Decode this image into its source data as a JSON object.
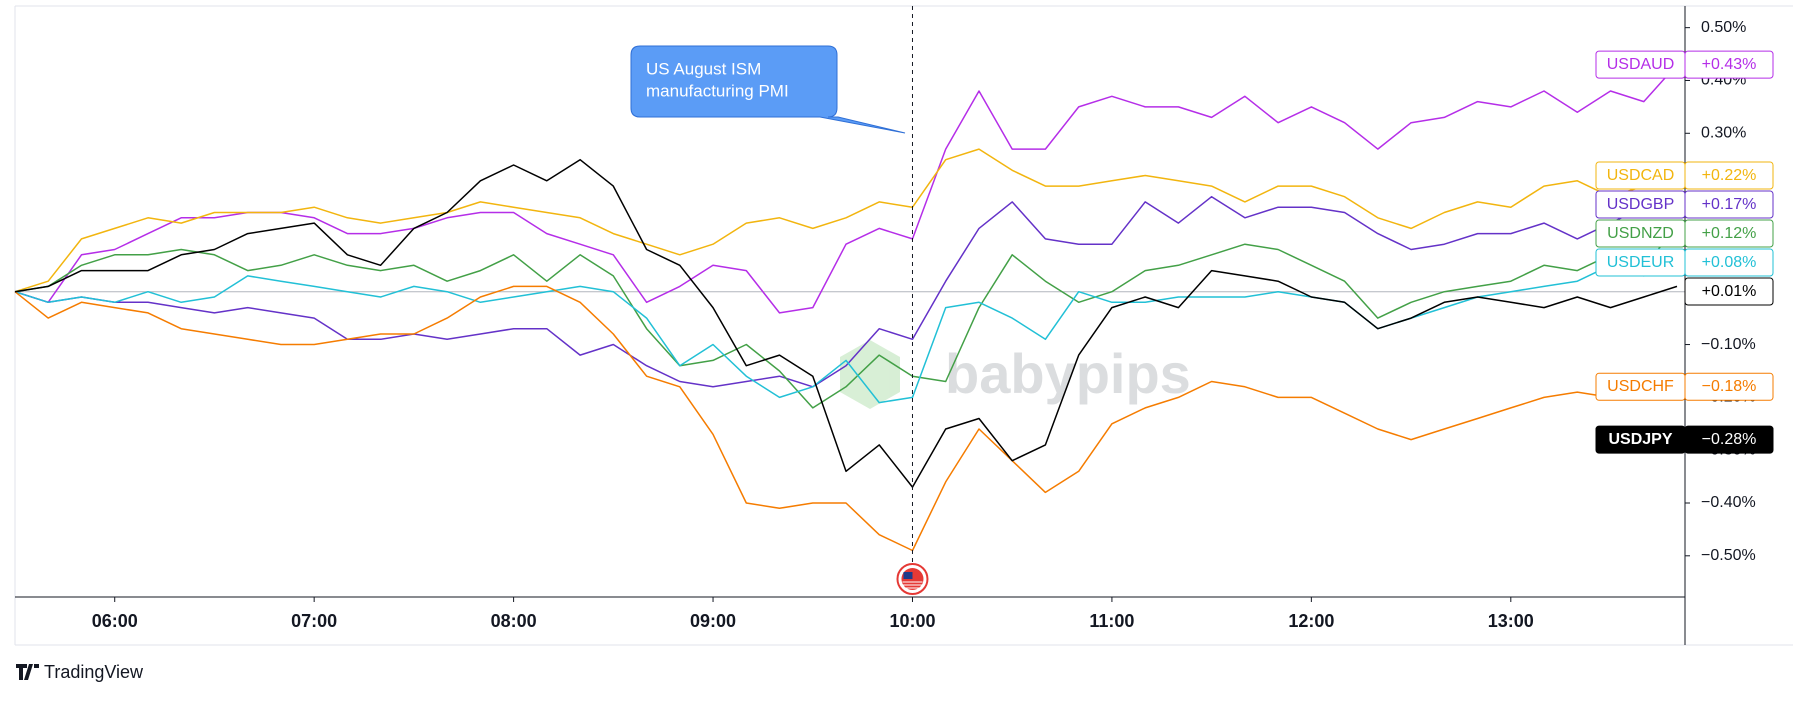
{
  "chart_data": {
    "type": "line",
    "annotation": [
      "US August ISM",
      "manufacturing PMI"
    ],
    "event_x": "10:00",
    "watermark": "babypips",
    "source": "TradingView",
    "x": [
      "05:30",
      "05:40",
      "05:50",
      "06:00",
      "06:10",
      "06:20",
      "06:30",
      "06:40",
      "06:50",
      "07:00",
      "07:10",
      "07:20",
      "07:30",
      "07:40",
      "07:50",
      "08:00",
      "08:10",
      "08:20",
      "08:30",
      "08:40",
      "08:50",
      "09:00",
      "09:10",
      "09:20",
      "09:30",
      "09:40",
      "09:50",
      "10:00",
      "10:10",
      "10:20",
      "10:30",
      "10:40",
      "10:50",
      "11:00",
      "11:10",
      "11:20",
      "11:30",
      "11:40",
      "11:50",
      "12:00",
      "12:10",
      "12:20",
      "12:30",
      "12:40",
      "12:50",
      "13:00",
      "13:10",
      "13:20",
      "13:30",
      "13:40",
      "13:50"
    ],
    "xticks": [
      "06:00",
      "07:00",
      "08:00",
      "09:00",
      "10:00",
      "11:00",
      "12:00",
      "13:00"
    ],
    "ylim": [
      -0.578,
      0.541
    ],
    "yticks": [
      {
        "value": 0.5,
        "label": "0.50%"
      },
      {
        "value": 0.4,
        "label": "0.40%"
      },
      {
        "value": 0.3,
        "label": "0.30%"
      },
      {
        "value": -0.1,
        "label": "−0.10%"
      },
      {
        "value": -0.2,
        "label": "−0.20%"
      },
      {
        "value": -0.3,
        "label": "−0.30%"
      },
      {
        "value": -0.4,
        "label": "−0.40%"
      },
      {
        "value": -0.5,
        "label": "−0.50%"
      }
    ],
    "grid": false,
    "series": [
      {
        "name": "USDAUD",
        "color": "#b52ee8",
        "values": [
          0,
          -0.02,
          0.07,
          0.08,
          0.11,
          0.14,
          0.14,
          0.15,
          0.15,
          0.14,
          0.11,
          0.11,
          0.12,
          0.14,
          0.15,
          0.15,
          0.11,
          0.09,
          0.07,
          -0.02,
          0.01,
          0.05,
          0.04,
          -0.04,
          -0.03,
          0.09,
          0.12,
          0.1,
          0.27,
          0.38,
          0.27,
          0.27,
          0.35,
          0.37,
          0.35,
          0.35,
          0.33,
          0.37,
          0.32,
          0.35,
          0.32,
          0.27,
          0.32,
          0.33,
          0.36,
          0.35,
          0.38,
          0.34,
          0.38,
          0.36,
          0.43
        ]
      },
      {
        "name": "USDCAD",
        "color": "#f2b50f",
        "values": [
          0,
          0.02,
          0.1,
          0.12,
          0.14,
          0.13,
          0.15,
          0.15,
          0.15,
          0.16,
          0.14,
          0.13,
          0.14,
          0.15,
          0.17,
          0.16,
          0.15,
          0.14,
          0.11,
          0.09,
          0.07,
          0.09,
          0.13,
          0.14,
          0.12,
          0.14,
          0.17,
          0.16,
          0.25,
          0.27,
          0.23,
          0.2,
          0.2,
          0.21,
          0.22,
          0.21,
          0.2,
          0.17,
          0.2,
          0.2,
          0.18,
          0.14,
          0.12,
          0.15,
          0.17,
          0.16,
          0.2,
          0.21,
          0.18,
          0.2,
          0.22
        ]
      },
      {
        "name": "USDGBP",
        "color": "#6432c8",
        "values": [
          0,
          -0.02,
          -0.01,
          -0.02,
          -0.02,
          -0.03,
          -0.04,
          -0.03,
          -0.04,
          -0.05,
          -0.09,
          -0.09,
          -0.08,
          -0.09,
          -0.08,
          -0.07,
          -0.07,
          -0.12,
          -0.1,
          -0.14,
          -0.17,
          -0.18,
          -0.17,
          -0.16,
          -0.18,
          -0.14,
          -0.07,
          -0.09,
          0.02,
          0.12,
          0.17,
          0.1,
          0.09,
          0.09,
          0.17,
          0.13,
          0.18,
          0.14,
          0.16,
          0.16,
          0.15,
          0.11,
          0.08,
          0.09,
          0.11,
          0.11,
          0.13,
          0.1,
          0.13,
          0.16,
          0.17
        ]
      },
      {
        "name": "USDNZD",
        "color": "#43a047",
        "values": [
          0,
          0.01,
          0.05,
          0.07,
          0.07,
          0.08,
          0.07,
          0.04,
          0.05,
          0.07,
          0.05,
          0.04,
          0.05,
          0.02,
          0.04,
          0.07,
          0.02,
          0.07,
          0.03,
          -0.07,
          -0.14,
          -0.13,
          -0.1,
          -0.15,
          -0.22,
          -0.18,
          -0.12,
          -0.16,
          -0.17,
          -0.03,
          0.07,
          0.02,
          -0.02,
          0.0,
          0.04,
          0.05,
          0.07,
          0.09,
          0.08,
          0.05,
          0.02,
          -0.05,
          -0.02,
          0.0,
          0.01,
          0.02,
          0.05,
          0.04,
          0.07,
          0.05,
          0.12
        ]
      },
      {
        "name": "USDEUR",
        "color": "#22c0d6",
        "values": [
          0,
          -0.02,
          -0.01,
          -0.02,
          0,
          -0.02,
          -0.01,
          0.03,
          0.02,
          0.01,
          0,
          -0.01,
          0.01,
          0,
          -0.02,
          -0.01,
          0,
          0.01,
          0,
          -0.05,
          -0.14,
          -0.1,
          -0.16,
          -0.2,
          -0.18,
          -0.13,
          -0.21,
          -0.2,
          -0.03,
          -0.02,
          -0.05,
          -0.09,
          0,
          -0.02,
          -0.02,
          -0.01,
          -0.01,
          -0.01,
          0,
          -0.01,
          -0.02,
          -0.07,
          -0.05,
          -0.03,
          -0.01,
          0,
          0.01,
          0.02,
          0.05,
          0.03,
          0.08
        ]
      },
      {
        "name": "USDCHF",
        "color": "#f57c00",
        "values": [
          0,
          -0.05,
          -0.02,
          -0.03,
          -0.04,
          -0.07,
          -0.08,
          -0.09,
          -0.1,
          -0.1,
          -0.09,
          -0.08,
          -0.08,
          -0.05,
          -0.01,
          0.01,
          0.01,
          -0.02,
          -0.08,
          -0.16,
          -0.18,
          -0.27,
          -0.4,
          -0.41,
          -0.4,
          -0.4,
          -0.46,
          -0.49,
          -0.36,
          -0.26,
          -0.32,
          -0.38,
          -0.34,
          -0.25,
          -0.22,
          -0.2,
          -0.17,
          -0.18,
          -0.2,
          -0.2,
          -0.23,
          -0.26,
          -0.28,
          -0.26,
          -0.24,
          -0.22,
          -0.2,
          -0.19,
          -0.2,
          -0.17,
          -0.18
        ]
      },
      {
        "name": "USDJPY",
        "color": "#000000",
        "values": [
          0,
          0.01,
          0.04,
          0.04,
          0.04,
          0.07,
          0.08,
          0.11,
          0.12,
          0.13,
          0.07,
          0.05,
          0.12,
          0.15,
          0.21,
          0.24,
          0.21,
          0.25,
          0.2,
          0.08,
          0.05,
          -0.03,
          -0.14,
          -0.12,
          -0.16,
          -0.34,
          -0.29,
          -0.37,
          -0.26,
          -0.24,
          -0.32,
          -0.29,
          -0.12,
          -0.03,
          -0.01,
          -0.03,
          0.04,
          0.03,
          0.02,
          -0.01,
          -0.02,
          -0.07,
          -0.05,
          -0.02,
          -0.01,
          -0.02,
          -0.03,
          -0.01,
          -0.03,
          -0.01,
          0.01
        ]
      }
    ],
    "price_labels": [
      {
        "name": "USDAUD",
        "value": 0.43,
        "label": "+0.43%",
        "color": "#b52ee8"
      },
      {
        "name": "USDCAD",
        "value": 0.22,
        "label": "+0.22%",
        "color": "#f2b50f"
      },
      {
        "name": "USDGBP",
        "value": 0.17,
        "label": "+0.17%",
        "color": "#6432c8"
      },
      {
        "name": "USDNZD",
        "value": 0.12,
        "label": "+0.12%",
        "color": "#43a047"
      },
      {
        "name": "USDEUR",
        "value": 0.08,
        "label": "+0.08%",
        "color": "#22c0d6"
      },
      {
        "value": 0.01,
        "label": "+0.01%",
        "color": "#000000"
      },
      {
        "name": "USDCHF",
        "value": -0.18,
        "label": "−0.18%",
        "color": "#f57c00"
      },
      {
        "name": "USDJPY",
        "value": -0.28,
        "label": "−0.28%",
        "color": "#000000",
        "filled": true
      }
    ]
  }
}
